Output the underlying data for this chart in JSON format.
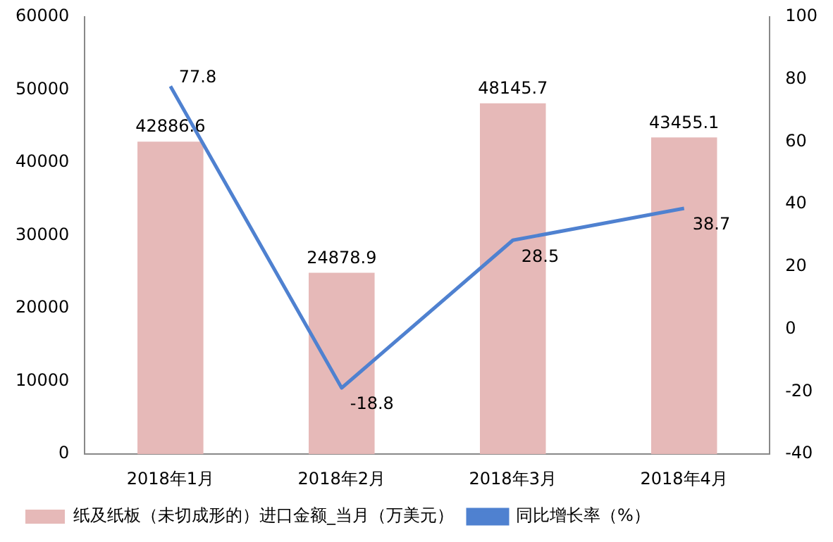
{
  "chart_data": {
    "type": "bar",
    "categories": [
      "2018年1月",
      "2018年2月",
      "2018年3月",
      "2018年4月"
    ],
    "series": [
      {
        "name": "纸及纸板（未切成形的）进口金额_当月（万美元）",
        "color": "#e6b9b8",
        "values": [
          42886.6,
          24878.9,
          48145.7,
          43455.1
        ]
      },
      {
        "name": "同比增长率（%）",
        "type": "line",
        "axis": "y2",
        "color": "#4f81d0",
        "values": [
          77.8,
          -18.8,
          28.5,
          38.7
        ]
      }
    ],
    "ylim": [
      0,
      60000
    ],
    "yticks": [
      0,
      10000,
      20000,
      30000,
      40000,
      50000,
      60000
    ],
    "y2lim": [
      -40,
      100
    ],
    "y2ticks": [
      -40,
      -20,
      0,
      20,
      40,
      60,
      80,
      100
    ],
    "data_labels": true,
    "legend": "bottom",
    "grid": false,
    "marker": "none"
  }
}
